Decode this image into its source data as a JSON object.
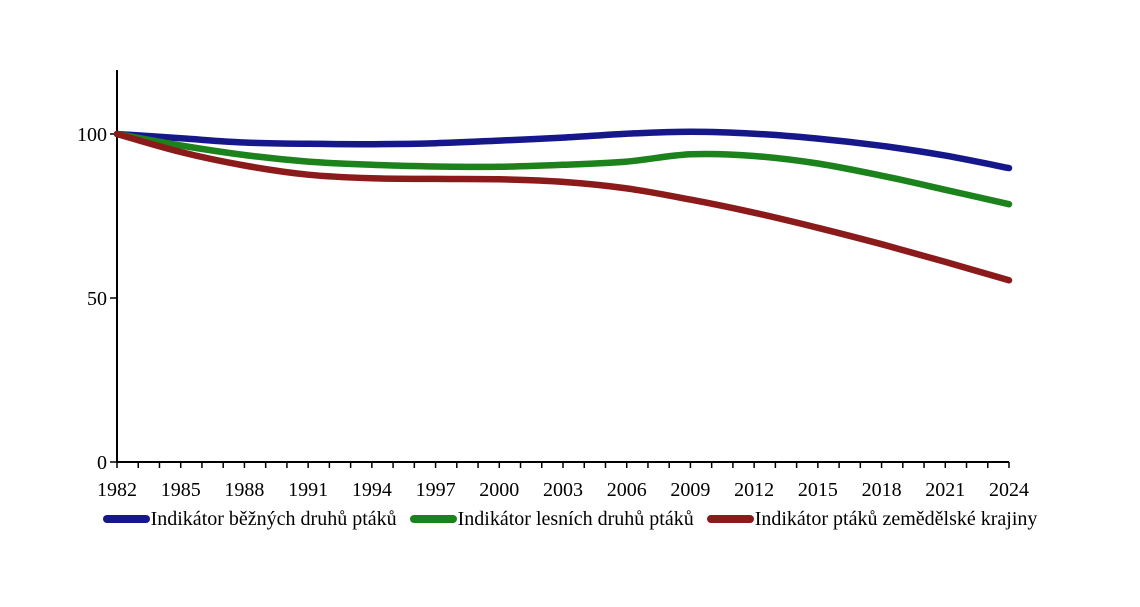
{
  "chart_data": {
    "type": "line",
    "x": [
      1982,
      1985,
      1988,
      1991,
      1994,
      1997,
      2000,
      2003,
      2006,
      2009,
      2012,
      2015,
      2018,
      2021,
      2024
    ],
    "series": [
      {
        "name": "Indikátor běžných druhů ptáků",
        "color": "#17178c",
        "values": [
          100,
          98.7,
          97.4,
          97.0,
          96.9,
          97.2,
          98.0,
          98.9,
          100.1,
          100.7,
          100.1,
          98.6,
          96.4,
          93.4,
          89.6
        ]
      },
      {
        "name": "Indikátor lesních druhů ptáků",
        "color": "#1c821c",
        "values": [
          100,
          96.5,
          93.6,
          91.6,
          90.6,
          90.1,
          90.0,
          90.6,
          91.6,
          93.8,
          93.3,
          91.0,
          87.3,
          83.0,
          78.6
        ]
      },
      {
        "name": "Indikátor ptáků zemědělské krajiny",
        "color": "#8b1b1b",
        "values": [
          100,
          94.5,
          90.4,
          87.6,
          86.5,
          86.3,
          86.2,
          85.4,
          83.4,
          80.0,
          76.0,
          71.4,
          66.4,
          61.0,
          55.4
        ]
      }
    ],
    "xlim": [
      1982,
      2024
    ],
    "ylim": [
      0,
      119.5
    ],
    "y_ticks": [
      0,
      50,
      100
    ],
    "y_tick_labels": [
      "0",
      "50",
      "100"
    ],
    "x_tick_labels": [
      "1982",
      "1985",
      "1988",
      "1991",
      "1994",
      "1997",
      "2000",
      "2003",
      "2006",
      "2009",
      "2012",
      "2015",
      "2018",
      "2021",
      "2024"
    ],
    "x_minor_tick_step_years": 1,
    "grid": false,
    "legend_position": "bottom",
    "axis_color": "#000000",
    "text_color": "#000000",
    "background_color": "#ffffff"
  }
}
